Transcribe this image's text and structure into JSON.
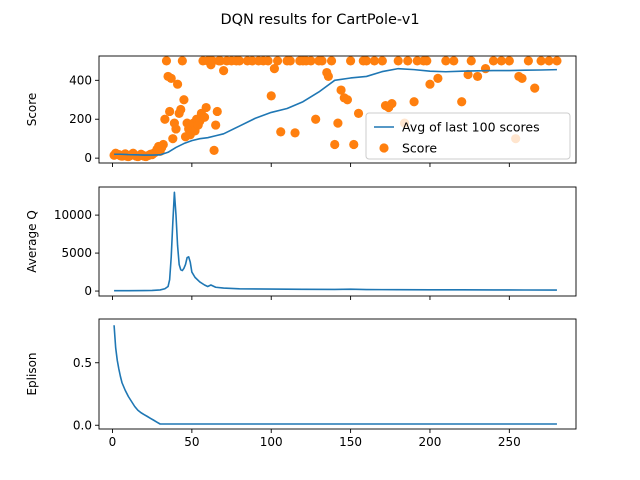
{
  "figure": {
    "title": "DQN results for CartPole-v1"
  },
  "chart_data": [
    {
      "type": "line+scatter",
      "ylabel": "Score",
      "xlim": [
        -8.5,
        292
      ],
      "ylim": [
        -25,
        525
      ],
      "yticks": [
        0,
        200,
        400
      ],
      "show_xtick_labels": false,
      "legend": {
        "placement": "lower-right",
        "entries": [
          "Avg of last 100 scores",
          "Score"
        ]
      },
      "series": [
        {
          "name": "Avg of last 100 scores",
          "kind": "line",
          "color": "#1f77b4",
          "x": [
            1,
            5,
            10,
            15,
            20,
            25,
            30,
            35,
            40,
            45,
            50,
            55,
            60,
            65,
            70,
            80,
            90,
            100,
            110,
            120,
            130,
            140,
            150,
            160,
            170,
            180,
            190,
            200,
            210,
            220,
            230,
            240,
            250,
            260,
            270,
            280
          ],
          "y": [
            20,
            20,
            18,
            17,
            16,
            16,
            17,
            30,
            55,
            75,
            90,
            100,
            105,
            115,
            125,
            165,
            205,
            235,
            255,
            290,
            340,
            400,
            412,
            420,
            445,
            460,
            455,
            447,
            444,
            447,
            449,
            450,
            450,
            452,
            453,
            455
          ]
        },
        {
          "name": "Score",
          "kind": "scatter",
          "color": "#ff7f0e",
          "x": [
            1,
            2,
            3,
            4,
            5,
            6,
            7,
            8,
            9,
            10,
            11,
            12,
            13,
            14,
            15,
            16,
            17,
            18,
            19,
            20,
            21,
            22,
            23,
            24,
            25,
            26,
            27,
            28,
            29,
            30,
            31,
            32,
            33,
            34,
            35,
            36,
            37,
            38,
            39,
            40,
            41,
            42,
            43,
            44,
            45,
            46,
            47,
            48,
            49,
            50,
            51,
            52,
            53,
            54,
            55,
            56,
            57,
            58,
            59,
            60,
            61,
            62,
            63,
            64,
            65,
            66,
            67,
            68,
            70,
            72,
            75,
            78,
            80,
            85,
            88,
            92,
            95,
            98,
            100,
            102,
            104,
            106,
            110,
            112,
            115,
            118,
            120,
            122,
            125,
            128,
            130,
            132,
            135,
            136,
            138,
            140,
            142,
            144,
            146,
            148,
            150,
            152,
            155,
            158,
            160,
            165,
            170,
            172,
            174,
            176,
            180,
            184,
            186,
            190,
            192,
            196,
            198,
            200,
            205,
            210,
            215,
            220,
            224,
            226,
            230,
            235,
            240,
            245,
            250,
            254,
            256,
            258,
            262,
            266,
            270,
            275,
            280
          ],
          "y": [
            15,
            25,
            20,
            18,
            12,
            10,
            15,
            22,
            10,
            8,
            12,
            18,
            25,
            15,
            10,
            8,
            12,
            20,
            15,
            10,
            8,
            12,
            15,
            20,
            18,
            25,
            30,
            45,
            60,
            35,
            55,
            70,
            200,
            500,
            420,
            240,
            410,
            100,
            180,
            150,
            380,
            230,
            250,
            500,
            300,
            110,
            180,
            150,
            120,
            160,
            180,
            140,
            200,
            170,
            190,
            230,
            500,
            210,
            260,
            500,
            500,
            480,
            500,
            40,
            170,
            240,
            500,
            500,
            450,
            500,
            500,
            500,
            500,
            500,
            500,
            500,
            500,
            500,
            320,
            460,
            500,
            135,
            500,
            500,
            130,
            500,
            500,
            500,
            500,
            200,
            500,
            500,
            440,
            420,
            500,
            70,
            180,
            350,
            310,
            300,
            500,
            70,
            230,
            500,
            500,
            500,
            500,
            270,
            260,
            280,
            500,
            180,
            500,
            290,
            500,
            500,
            500,
            380,
            410,
            500,
            500,
            290,
            430,
            500,
            420,
            460,
            500,
            500,
            500,
            100,
            420,
            410,
            500,
            360,
            500,
            500,
            500
          ]
        }
      ]
    },
    {
      "type": "line",
      "ylabel": "Average Q",
      "xlim": [
        -8.5,
        292
      ],
      "ylim": [
        -650,
        13700
      ],
      "yticks": [
        0,
        5000,
        10000
      ],
      "show_xtick_labels": false,
      "series": [
        {
          "kind": "line",
          "color": "#1f77b4",
          "x": [
            1,
            10,
            20,
            25,
            30,
            33,
            35,
            36,
            37,
            38,
            39,
            40,
            41,
            42,
            43,
            44,
            45,
            46,
            47,
            48,
            49,
            50,
            52,
            55,
            58,
            60,
            62,
            65,
            70,
            80,
            100,
            120,
            140,
            150,
            160,
            180,
            200,
            220,
            240,
            260,
            280
          ],
          "y": [
            50,
            50,
            60,
            80,
            150,
            300,
            600,
            1500,
            4500,
            9000,
            13000,
            10000,
            6000,
            3500,
            2800,
            2700,
            3000,
            3500,
            4400,
            4500,
            3800,
            2500,
            1800,
            1200,
            800,
            600,
            800,
            500,
            400,
            300,
            260,
            230,
            220,
            250,
            200,
            180,
            170,
            160,
            150,
            140,
            130
          ]
        }
      ]
    },
    {
      "type": "line",
      "ylabel": "Eplison",
      "xlim": [
        -8.5,
        292
      ],
      "ylim": [
        -0.03,
        0.85
      ],
      "yticks": [
        0.0,
        0.5
      ],
      "xticks": [
        0,
        50,
        100,
        150,
        200,
        250
      ],
      "series": [
        {
          "kind": "line",
          "color": "#1f77b4",
          "x": [
            1,
            2,
            3,
            4,
            5,
            6,
            8,
            10,
            12,
            14,
            16,
            18,
            20,
            22,
            24,
            26,
            28,
            30,
            35,
            50,
            100,
            150,
            200,
            250,
            280
          ],
          "y": [
            0.8,
            0.62,
            0.52,
            0.45,
            0.39,
            0.34,
            0.28,
            0.23,
            0.19,
            0.15,
            0.12,
            0.1,
            0.085,
            0.07,
            0.055,
            0.04,
            0.025,
            0.01,
            0.01,
            0.01,
            0.01,
            0.01,
            0.01,
            0.01,
            0.01
          ]
        }
      ]
    }
  ]
}
